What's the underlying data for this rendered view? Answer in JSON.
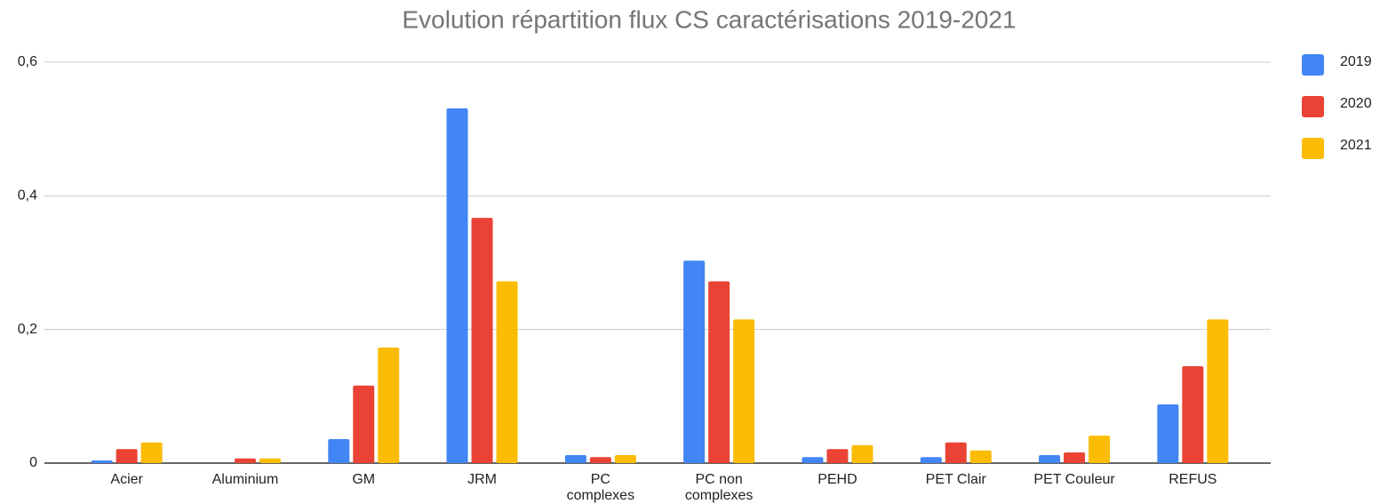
{
  "chart_data": {
    "type": "bar",
    "title": "Evolution répartition flux CS caractérisations 2019-2021",
    "categories": [
      "Acier",
      "Aluminium",
      "GM",
      "JRM",
      "PC\ncomplexes",
      "PC non\ncomplexes",
      "PEHD",
      "PET Clair",
      "PET Couleur",
      "REFUS"
    ],
    "series": [
      {
        "name": "2019",
        "color": "#4285f4",
        "values": [
          0.004,
          0,
          0.036,
          0.531,
          0.012,
          0.303,
          0.009,
          0.009,
          0.012,
          0.088
        ]
      },
      {
        "name": "2020",
        "color": "#ea4335",
        "values": [
          0.021,
          0.007,
          0.116,
          0.367,
          0.009,
          0.272,
          0.021,
          0.031,
          0.016,
          0.145
        ]
      },
      {
        "name": "2021",
        "color": "#fbbc04",
        "values": [
          0.031,
          0.007,
          0.173,
          0.272,
          0.012,
          0.215,
          0.027,
          0.019,
          0.041,
          0.215
        ]
      }
    ],
    "ylim": [
      0,
      0.6
    ],
    "yticks": [
      0,
      {
        "value": 0.2,
        "label": "0,2"
      },
      {
        "value": 0.4,
        "label": "0,4"
      },
      {
        "value": 0.6,
        "label": "0,6"
      }
    ],
    "grid": true,
    "legend": "right"
  }
}
